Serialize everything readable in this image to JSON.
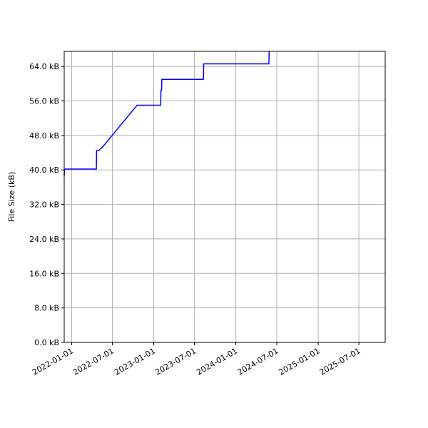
{
  "chart_data": {
    "type": "line",
    "title": "",
    "xlabel": "",
    "ylabel": "File Size (kB)",
    "grid": true,
    "x_type": "date",
    "xlim": [
      "2021-11-29",
      "2025-10-26"
    ],
    "ylim": [
      0,
      67.5
    ],
    "x_ticks": [
      "2022-01-01",
      "2022-07-01",
      "2023-01-01",
      "2023-07-01",
      "2024-01-01",
      "2024-07-01",
      "2025-01-01",
      "2025-07-01"
    ],
    "x_tick_labels": [
      "2022-01-01",
      "2022-07-01",
      "2023-01-01",
      "2023-07-01",
      "2024-01-01",
      "2024-07-01",
      "2025-01-01",
      "2025-07-01"
    ],
    "y_ticks": [
      0,
      8,
      16,
      24,
      32,
      40,
      48,
      56,
      64
    ],
    "y_tick_labels": [
      "0.0 kB",
      "8.0 kB",
      "16.0 kB",
      "24.0 kB",
      "32.0 kB",
      "40.0 kB",
      "48.0 kB",
      "56.0 kB",
      "64.0 kB"
    ],
    "series": [
      {
        "color": "#0000ff",
        "x": [
          "2021-11-29",
          "2021-11-30",
          "2021-12-03",
          "2022-04-21",
          "2022-04-22",
          "2022-05-02",
          "2022-05-20",
          "2022-10-19",
          "2023-02-01",
          "2023-02-02",
          "2023-02-05",
          "2023-02-06",
          "2023-02-08",
          "2023-08-10",
          "2023-08-11",
          "2024-05-27",
          "2024-05-28"
        ],
        "y": [
          38.5,
          40,
          40.2,
          40.2,
          44.5,
          44.5,
          45.4,
          55,
          55,
          58.5,
          58.5,
          61,
          61,
          61,
          64.6,
          64.6,
          67.5
        ]
      }
    ]
  }
}
